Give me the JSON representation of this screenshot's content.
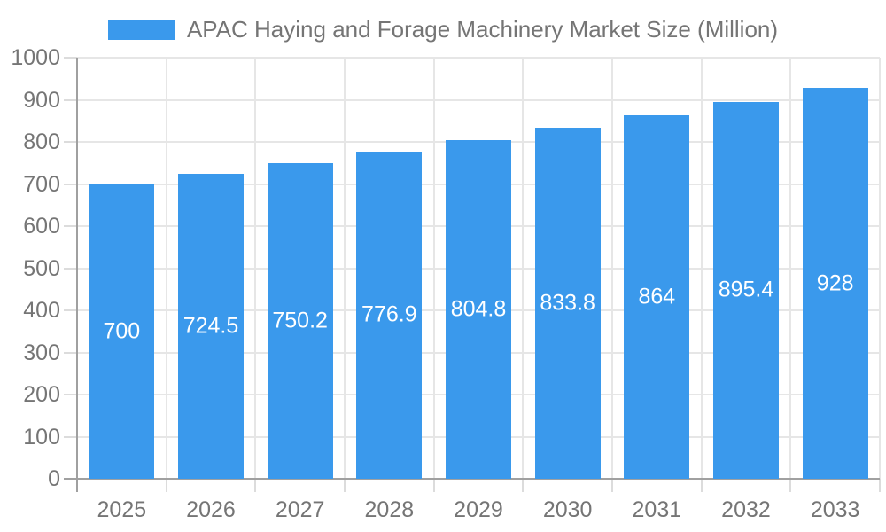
{
  "legend": {
    "label": "APAC Haying and Forage Machinery Market Size (Million)",
    "swatch_color": "#3a99ec"
  },
  "chart_data": {
    "type": "bar",
    "title": "APAC Haying and Forage Machinery Market Size (Million)",
    "categories": [
      "2025",
      "2026",
      "2027",
      "2028",
      "2029",
      "2030",
      "2031",
      "2032",
      "2033"
    ],
    "values": [
      700,
      724.5,
      750.2,
      776.9,
      804.8,
      833.8,
      864,
      895.4,
      928
    ],
    "value_labels": [
      "700",
      "724.5",
      "750.2",
      "776.9",
      "804.8",
      "833.8",
      "864",
      "895.4",
      "928"
    ],
    "xlabel": "",
    "ylabel": "",
    "ylim": [
      0,
      1000
    ],
    "ytick_step": 100,
    "yticks": [
      0,
      100,
      200,
      300,
      400,
      500,
      600,
      700,
      800,
      900,
      1000
    ],
    "grid": true,
    "legend_position": "top",
    "bar_color": "#3a99ec",
    "value_label_color": "#ffffff",
    "tick_label_color": "#757575",
    "gridline_color": "#e6e6e6",
    "axis_color": "#a0a0a0"
  }
}
